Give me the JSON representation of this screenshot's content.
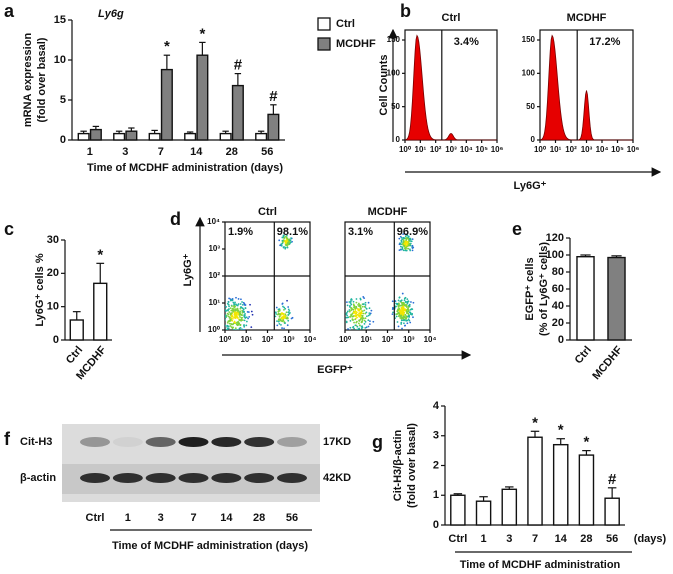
{
  "chart_data": [
    {
      "type": "bar",
      "label": "a",
      "title": "Ly6g",
      "ylabel": [
        "mRNA expression",
        "(fold over basal)"
      ],
      "xlabel": "Time of MCDHF administration (days)",
      "categories": [
        "1",
        "3",
        "7",
        "14",
        "28",
        "56"
      ],
      "series": [
        {
          "name": "Ctrl",
          "color": "#ffffff",
          "values": [
            0.8,
            0.8,
            0.8,
            0.8,
            0.8,
            0.8
          ],
          "errors": [
            0.3,
            0.3,
            0.4,
            0.2,
            0.3,
            0.3
          ]
        },
        {
          "name": "MCDHF",
          "color": "#808080",
          "values": [
            1.3,
            1.1,
            8.8,
            10.6,
            6.8,
            3.2
          ],
          "errors": [
            0.4,
            0.4,
            1.8,
            1.6,
            1.5,
            1.2
          ],
          "markers": [
            null,
            null,
            "*",
            "*",
            "#",
            "#"
          ]
        }
      ],
      "ylim": [
        0,
        15
      ],
      "yticks": [
        0,
        5,
        10,
        15
      ],
      "legend": "right"
    },
    {
      "type": "bar",
      "label": "c",
      "ylabel": [
        "Ly6G⁺ cells %"
      ],
      "categories": [
        "Ctrl",
        "MCDHF"
      ],
      "series": [
        {
          "color": "#ffffff",
          "values": [
            6,
            17
          ],
          "errors": [
            2.5,
            6
          ],
          "markers": [
            null,
            "*"
          ]
        }
      ],
      "ylim": [
        0,
        30
      ],
      "yticks": [
        0,
        10,
        20,
        30
      ]
    },
    {
      "type": "bar",
      "label": "e",
      "ylabel": [
        "EGFP⁺ cells",
        "(% of Ly6G⁺ cells)"
      ],
      "categories": [
        "Ctrl",
        "MCDHF"
      ],
      "series": [
        {
          "colors": [
            "#ffffff",
            "#808080"
          ],
          "values": [
            98,
            97
          ],
          "errors": [
            2,
            2
          ]
        }
      ],
      "ylim": [
        0,
        120
      ],
      "yticks": [
        0,
        20,
        40,
        60,
        80,
        100,
        120
      ]
    },
    {
      "type": "bar",
      "label": "g",
      "ylabel": [
        "Cit-H3/β-actin",
        "(fold over basal)"
      ],
      "xlabel": "Time of MCDHF administration",
      "xunit": "(days)",
      "categories": [
        "Ctrl",
        "1",
        "3",
        "7",
        "14",
        "28",
        "56"
      ],
      "series": [
        {
          "color": "#ffffff",
          "values": [
            1.0,
            0.8,
            1.2,
            2.95,
            2.7,
            2.35,
            0.9
          ],
          "errors": [
            0.05,
            0.15,
            0.08,
            0.2,
            0.2,
            0.15,
            0.35
          ],
          "markers": [
            null,
            null,
            null,
            "*",
            "*",
            "*",
            "#"
          ]
        }
      ],
      "ylim": [
        0,
        4
      ],
      "yticks": [
        0,
        1,
        2,
        3,
        4
      ]
    }
  ],
  "histogram_panel": {
    "label": "b",
    "ylabel": "Cell Counts",
    "xlabel": "Ly6G⁺",
    "ylim": [
      0,
      165
    ],
    "yticks": [
      0,
      50,
      100,
      150
    ],
    "log_x": true,
    "xlim": [
      1,
      1000000
    ],
    "xticks": [
      {
        "value": 1,
        "label": "10⁰"
      },
      {
        "value": 10,
        "label": "10¹"
      },
      {
        "value": 100,
        "label": "10²"
      },
      {
        "value": 1000,
        "label": "10³"
      },
      {
        "value": 10000,
        "label": "10⁴"
      },
      {
        "value": 100000,
        "label": "10⁵"
      },
      {
        "value": 1000000,
        "label": "10⁶"
      }
    ],
    "plots": [
      {
        "title": "Ctrl",
        "gate": "3.4%"
      },
      {
        "title": "MCDHF",
        "gate": "17.2%"
      }
    ]
  },
  "dotplot_panel": {
    "label": "d",
    "ylabel": "Ly6G⁺",
    "xlabel": "EGFP⁺",
    "log_x": true,
    "log_y": true,
    "xlim": [
      1,
      10000
    ],
    "ylim": [
      1,
      10000
    ],
    "xticks": [
      {
        "value": 1,
        "label": "10⁰"
      },
      {
        "value": 10,
        "label": "10¹"
      },
      {
        "value": 100,
        "label": "10²"
      },
      {
        "value": 1000,
        "label": "10³"
      },
      {
        "value": 10000,
        "label": "10⁴"
      }
    ],
    "yticks": [
      {
        "value": 1,
        "label": "10⁰"
      },
      {
        "value": 10,
        "label": "10¹"
      },
      {
        "value": 100,
        "label": "10²"
      },
      {
        "value": 1000,
        "label": "10³"
      },
      {
        "value": 10000,
        "label": "10⁴"
      }
    ],
    "plots": [
      {
        "title": "Ctrl",
        "upper_left": "1.9%",
        "upper_right": "98.1%"
      },
      {
        "title": "MCDHF",
        "upper_left": "3.1%",
        "upper_right": "96.9%"
      }
    ]
  },
  "blot_panel": {
    "label": "f",
    "rows": [
      {
        "name": "Cit-H3",
        "size": "17KD"
      },
      {
        "name": "β-actin",
        "size": "42KD"
      }
    ],
    "lanes": [
      "Ctrl",
      "1",
      "3",
      "7",
      "14",
      "28",
      "56"
    ],
    "xlabel": "Time of MCDHF administration (days)"
  }
}
